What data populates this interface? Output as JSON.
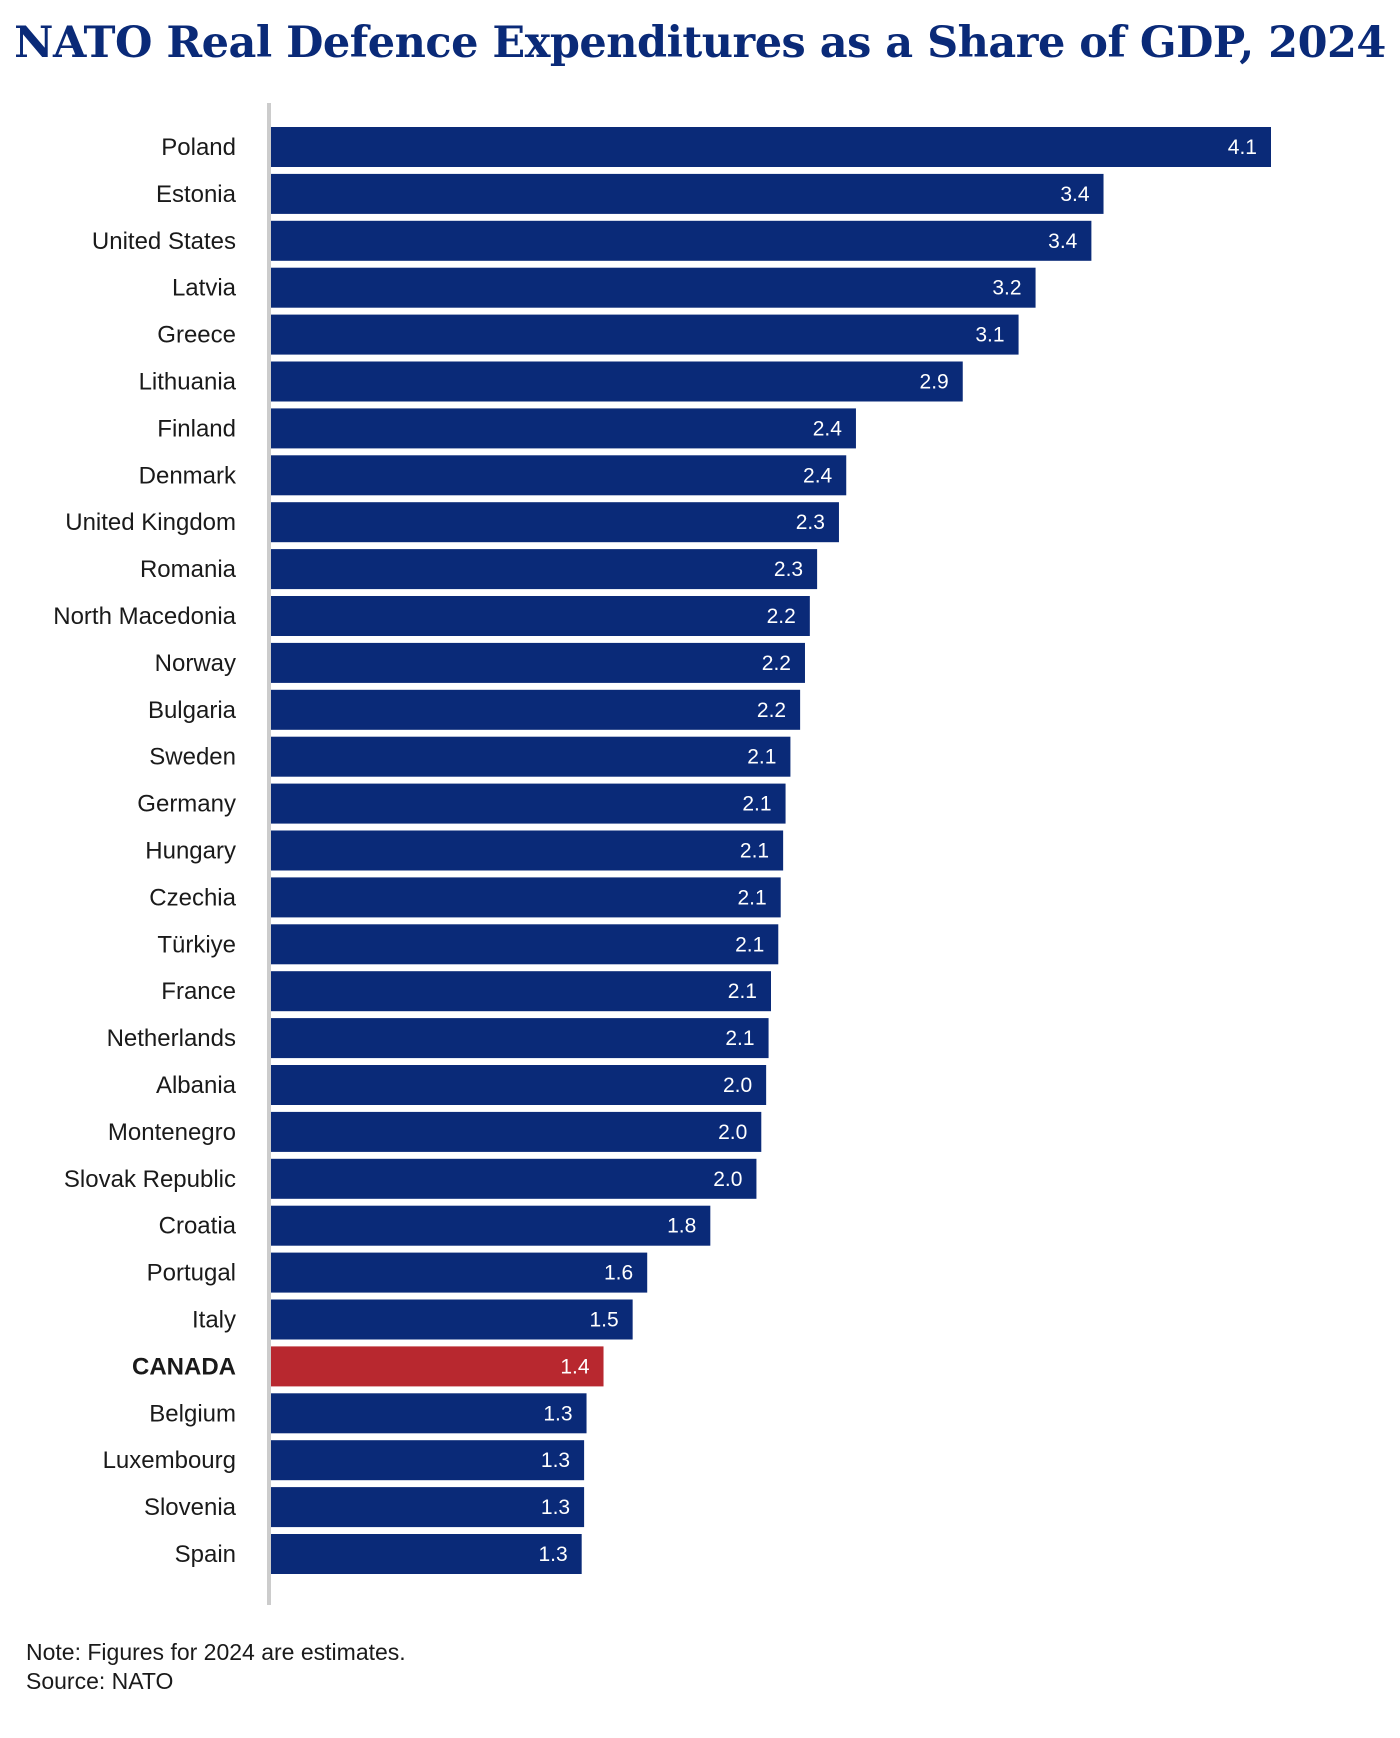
{
  "chart_data": {
    "type": "bar",
    "orientation": "horizontal",
    "title": "NATO Real Defence Expenditures as a Share of GDP, 2024",
    "categories": [
      "Poland",
      "Estonia",
      "United States",
      "Latvia",
      "Greece",
      "Lithuania",
      "Finland",
      "Denmark",
      "United Kingdom",
      "Romania",
      "North Macedonia",
      "Norway",
      "Bulgaria",
      "Sweden",
      "Germany",
      "Hungary",
      "Czechia",
      "Türkiye",
      "France",
      "Netherlands",
      "Albania",
      "Montenegro",
      "Slovak Republic",
      "Croatia",
      "Portugal",
      "Italy",
      "CANADA",
      "Belgium",
      "Luxembourg",
      "Slovenia",
      "Spain"
    ],
    "values": [
      4.12,
      3.43,
      3.38,
      3.15,
      3.08,
      2.85,
      2.41,
      2.37,
      2.34,
      2.25,
      2.22,
      2.2,
      2.18,
      2.14,
      2.12,
      2.11,
      2.1,
      2.09,
      2.06,
      2.05,
      2.04,
      2.02,
      2.0,
      1.81,
      1.55,
      1.49,
      1.37,
      1.3,
      1.29,
      1.29,
      1.28
    ],
    "value_labels": [
      "4.1",
      "3.4",
      "3.4",
      "3.2",
      "3.1",
      "2.9",
      "2.4",
      "2.4",
      "2.3",
      "2.3",
      "2.2",
      "2.2",
      "2.2",
      "2.1",
      "2.1",
      "2.1",
      "2.1",
      "2.1",
      "2.1",
      "2.1",
      "2.0",
      "2.0",
      "2.0",
      "1.8",
      "1.6",
      "1.5",
      "1.4",
      "1.3",
      "1.3",
      "1.3",
      "1.3"
    ],
    "highlight": "CANADA",
    "xlim": [
      0,
      4.12
    ],
    "grid": false,
    "colors": {
      "bar": "#0a2a78",
      "highlight": "#b8282f",
      "axis": "#cccccc"
    }
  },
  "footer": {
    "note": "Note: Figures for 2024 are estimates.",
    "source": "Source: NATO"
  }
}
